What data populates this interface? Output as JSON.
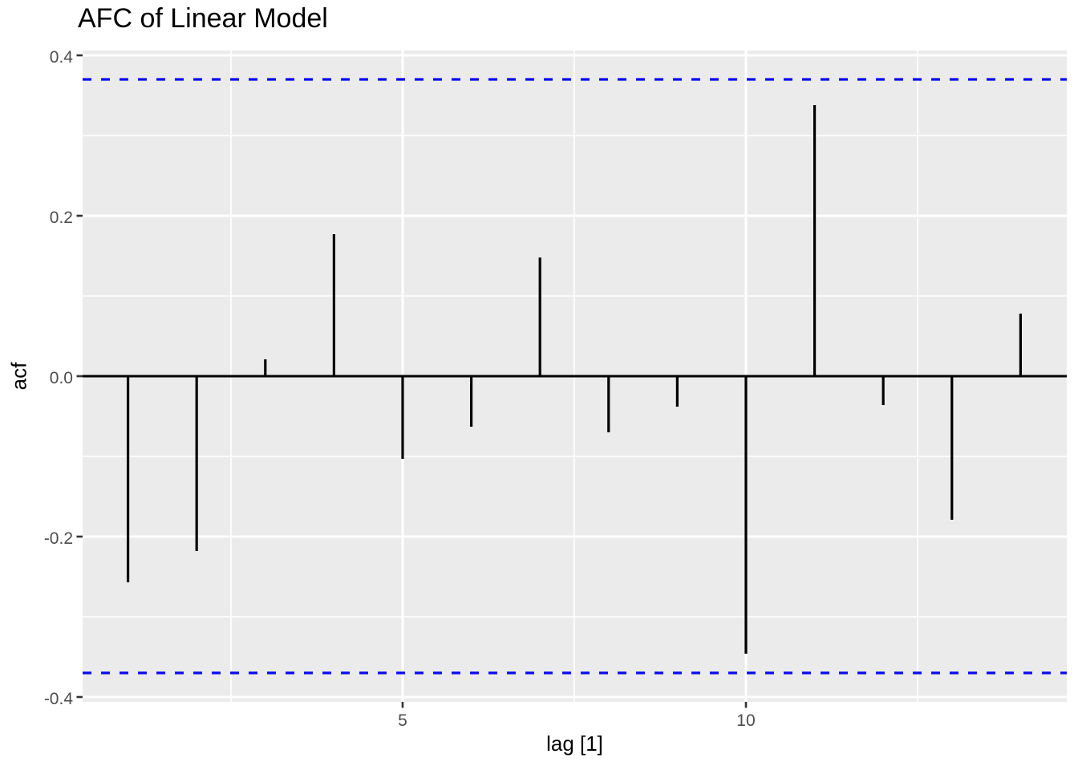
{
  "chart_data": {
    "type": "bar",
    "subtype": "acf-stem",
    "title": "AFC of Linear Model",
    "xlabel": "lag [1]",
    "ylabel": "acf",
    "x": [
      1,
      2,
      3,
      4,
      5,
      6,
      7,
      8,
      9,
      10,
      11,
      12,
      13,
      14
    ],
    "values": [
      -0.257,
      -0.218,
      0.021,
      0.177,
      -0.103,
      -0.063,
      0.148,
      -0.07,
      -0.038,
      -0.346,
      0.338,
      -0.036,
      -0.179,
      0.078
    ],
    "confidence_bands": {
      "upper": 0.37,
      "lower": -0.37,
      "line_style": "dashed",
      "color": "#0a0af0"
    },
    "zero_line": 0,
    "xticks": [
      {
        "v": 5,
        "label": "5"
      },
      {
        "v": 10,
        "label": "10"
      }
    ],
    "yticks": [
      {
        "v": 0.4,
        "label": "0.4"
      },
      {
        "v": 0.2,
        "label": "0.2"
      },
      {
        "v": 0.0,
        "label": "0.0"
      },
      {
        "v": -0.2,
        "label": "-0.2"
      },
      {
        "v": -0.4,
        "label": "-0.4"
      }
    ],
    "x_minor": [
      2.5,
      7.5,
      12.5
    ],
    "y_minor": [
      0.3,
      0.1,
      -0.1,
      -0.3
    ],
    "xlim": [
      0.339,
      14.673
    ],
    "ylim": [
      -0.406,
      0.406
    ],
    "grid": true,
    "legend": false,
    "colors": {
      "panel_bg": "#ebebeb",
      "grid": "#ffffff",
      "stem": "#000000",
      "zero_line": "#000000",
      "band": "#0a0af0",
      "tick_mark": "#333333",
      "tick_text": "#4d4d4d",
      "title_text": "#000000"
    }
  }
}
